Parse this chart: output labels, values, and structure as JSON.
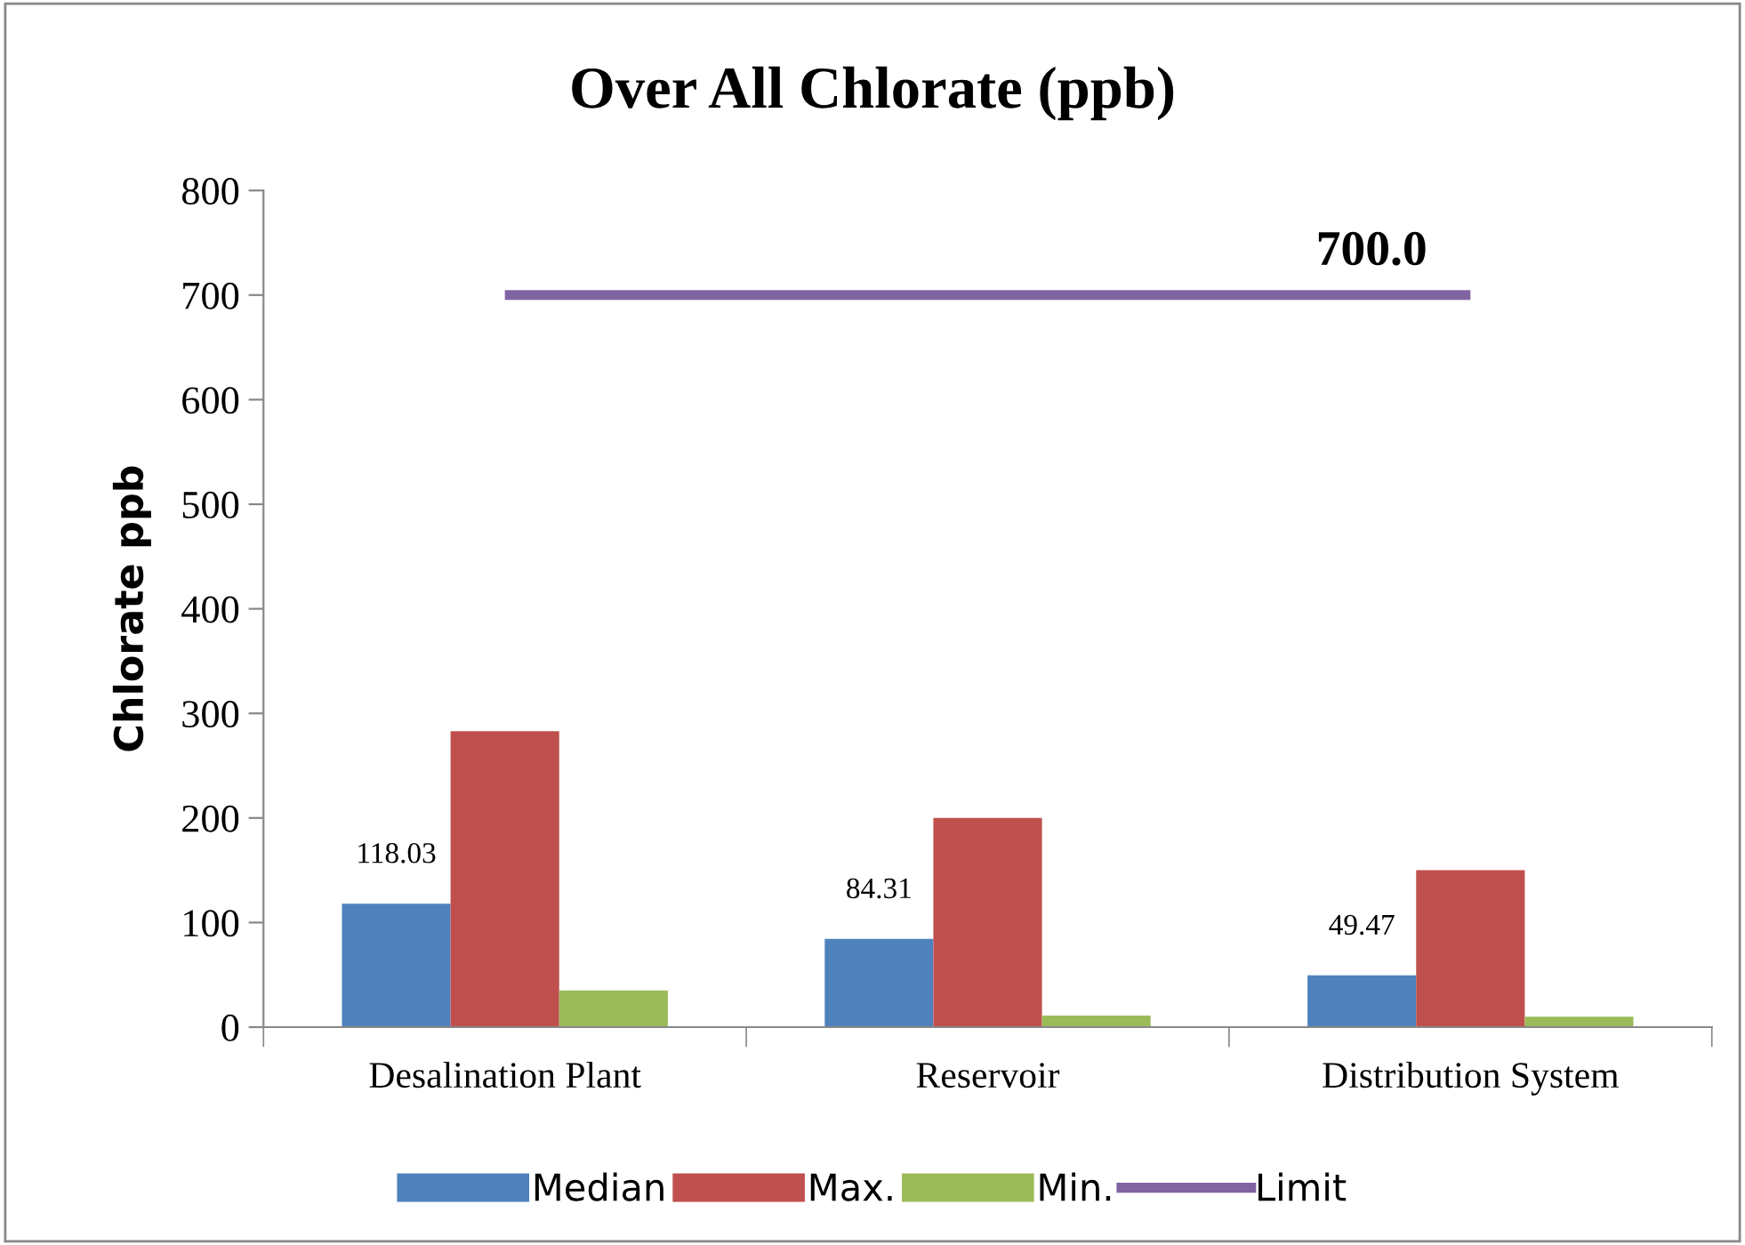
{
  "chart_data": {
    "type": "bar",
    "title": "Over All Chlorate (ppb)",
    "ylabel": "Chlorate ppb",
    "categories": [
      "Desalination Plant",
      "Reservoir",
      "Distribution System"
    ],
    "series": [
      {
        "name": "Median",
        "color": "#4f81bd",
        "values": [
          118.03,
          84.31,
          49.47
        ],
        "value_labels": [
          "118.03",
          "84.31",
          "49.47"
        ]
      },
      {
        "name": "Max.",
        "color": "#c0504d",
        "values": [
          283,
          200,
          150
        ]
      },
      {
        "name": "Min.",
        "color": "#9bbb59",
        "values": [
          35,
          11,
          10
        ]
      },
      {
        "name": "Limit",
        "type": "line",
        "color": "#8064a2",
        "values": [
          700,
          700,
          700
        ],
        "value_labels": [
          null,
          null,
          "700.0"
        ]
      }
    ],
    "ylim": [
      0,
      800
    ],
    "yticks": [
      0,
      100,
      200,
      300,
      400,
      500,
      600,
      700,
      800
    ],
    "grid": false,
    "legend": "bottom"
  }
}
